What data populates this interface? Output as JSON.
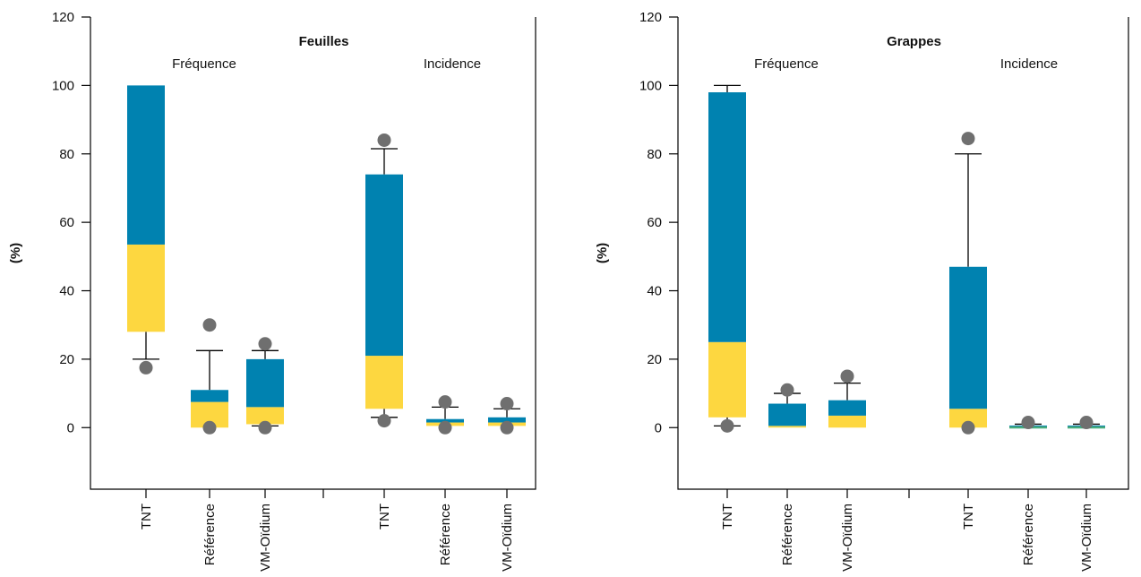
{
  "colors": {
    "upper_box": "#0082b0",
    "lower_box": "#fdd740",
    "outlier": "#6f6f6f",
    "zero_line": "#3aa87a"
  },
  "chart_data": [
    {
      "type": "box",
      "title": "Feuilles",
      "xlabel": "",
      "ylabel": "(%)",
      "ylim": [
        -18,
        120
      ],
      "yticks": [
        0,
        20,
        40,
        60,
        80,
        100,
        120
      ],
      "groups": [
        {
          "label": "Fréquence",
          "categories": [
            {
              "name": "TNT",
              "q1": 28,
              "median": 53.5,
              "q3": 100,
              "whisker_low": 20,
              "whisker_high": null,
              "outliers": [
                17.5
              ]
            },
            {
              "name": "Référence",
              "q1": 0,
              "median": 7.5,
              "q3": 11,
              "whisker_low": null,
              "whisker_high": 22.5,
              "outliers": [
                0,
                30
              ]
            },
            {
              "name": "VM-Oïdium",
              "q1": 1,
              "median": 6,
              "q3": 20,
              "whisker_low": 0.5,
              "whisker_high": 22.5,
              "outliers": [
                0,
                24.5
              ]
            }
          ]
        },
        {
          "label": "Incidence",
          "categories": [
            {
              "name": "TNT",
              "q1": 5.5,
              "median": 21,
              "q3": 74,
              "whisker_low": 3,
              "whisker_high": 81.5,
              "outliers": [
                2,
                84
              ]
            },
            {
              "name": "Référence",
              "q1": 0.5,
              "median": 1.5,
              "q3": 2.5,
              "whisker_low": null,
              "whisker_high": 6,
              "outliers": [
                0,
                7.5
              ]
            },
            {
              "name": "VM-Oïdium",
              "q1": 0.5,
              "median": 1.5,
              "q3": 3,
              "whisker_low": null,
              "whisker_high": 5.5,
              "outliers": [
                0,
                7
              ]
            }
          ]
        }
      ]
    },
    {
      "type": "box",
      "title": "Grappes",
      "xlabel": "",
      "ylabel": "(%)",
      "ylim": [
        -18,
        120
      ],
      "yticks": [
        0,
        20,
        40,
        60,
        80,
        100,
        120
      ],
      "groups": [
        {
          "label": "Fréquence",
          "categories": [
            {
              "name": "TNT",
              "q1": 3,
              "median": 25,
              "q3": 98,
              "whisker_low": 0.5,
              "whisker_high": 100,
              "outliers": [
                0.5
              ]
            },
            {
              "name": "Référence",
              "q1": 0,
              "median": 0.5,
              "q3": 7,
              "whisker_low": null,
              "whisker_high": 10,
              "outliers": [
                11
              ]
            },
            {
              "name": "VM-Oïdium",
              "q1": 0,
              "median": 3.5,
              "q3": 8,
              "whisker_low": null,
              "whisker_high": 13,
              "outliers": [
                15
              ]
            }
          ]
        },
        {
          "label": "Incidence",
          "categories": [
            {
              "name": "TNT",
              "q1": 0,
              "median": 5.5,
              "q3": 47,
              "whisker_low": null,
              "whisker_high": 80,
              "outliers": [
                0,
                84.5
              ]
            },
            {
              "name": "Référence",
              "q1": 0,
              "median": 0.3,
              "q3": 0.6,
              "whisker_low": null,
              "whisker_high": 1,
              "outliers": [
                1.5
              ]
            },
            {
              "name": "VM-Oïdium",
              "q1": 0,
              "median": 0.3,
              "q3": 0.6,
              "whisker_low": null,
              "whisker_high": 1,
              "outliers": [
                1.5
              ]
            }
          ]
        }
      ]
    }
  ]
}
